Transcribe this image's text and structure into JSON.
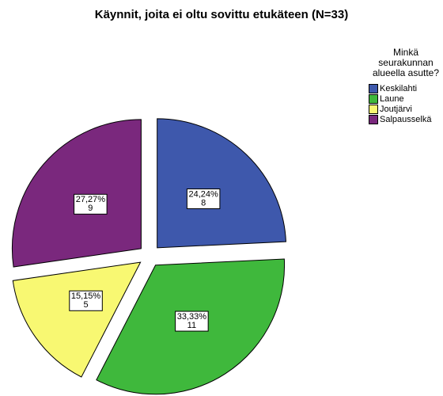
{
  "chart_data": {
    "type": "pie",
    "title": "Käynnit, joita ei oltu sovittu etukäteen (N=33)",
    "legend_title": "Minkä seurakunnan alueella asutte?",
    "legend": "right",
    "categories": [
      "Keskilahti",
      "Laune",
      "Joutjärvi",
      "Salpausselkä"
    ],
    "values": [
      24.24,
      33.33,
      15.15,
      27.27
    ],
    "value_labels": [
      "24,24%",
      "33,33%",
      "15,15%",
      "27,27%"
    ],
    "counts": [
      8,
      11,
      5,
      9
    ],
    "colors": [
      "#3e58ac",
      "#3fb83c",
      "#f8f872",
      "#7a287d"
    ]
  }
}
